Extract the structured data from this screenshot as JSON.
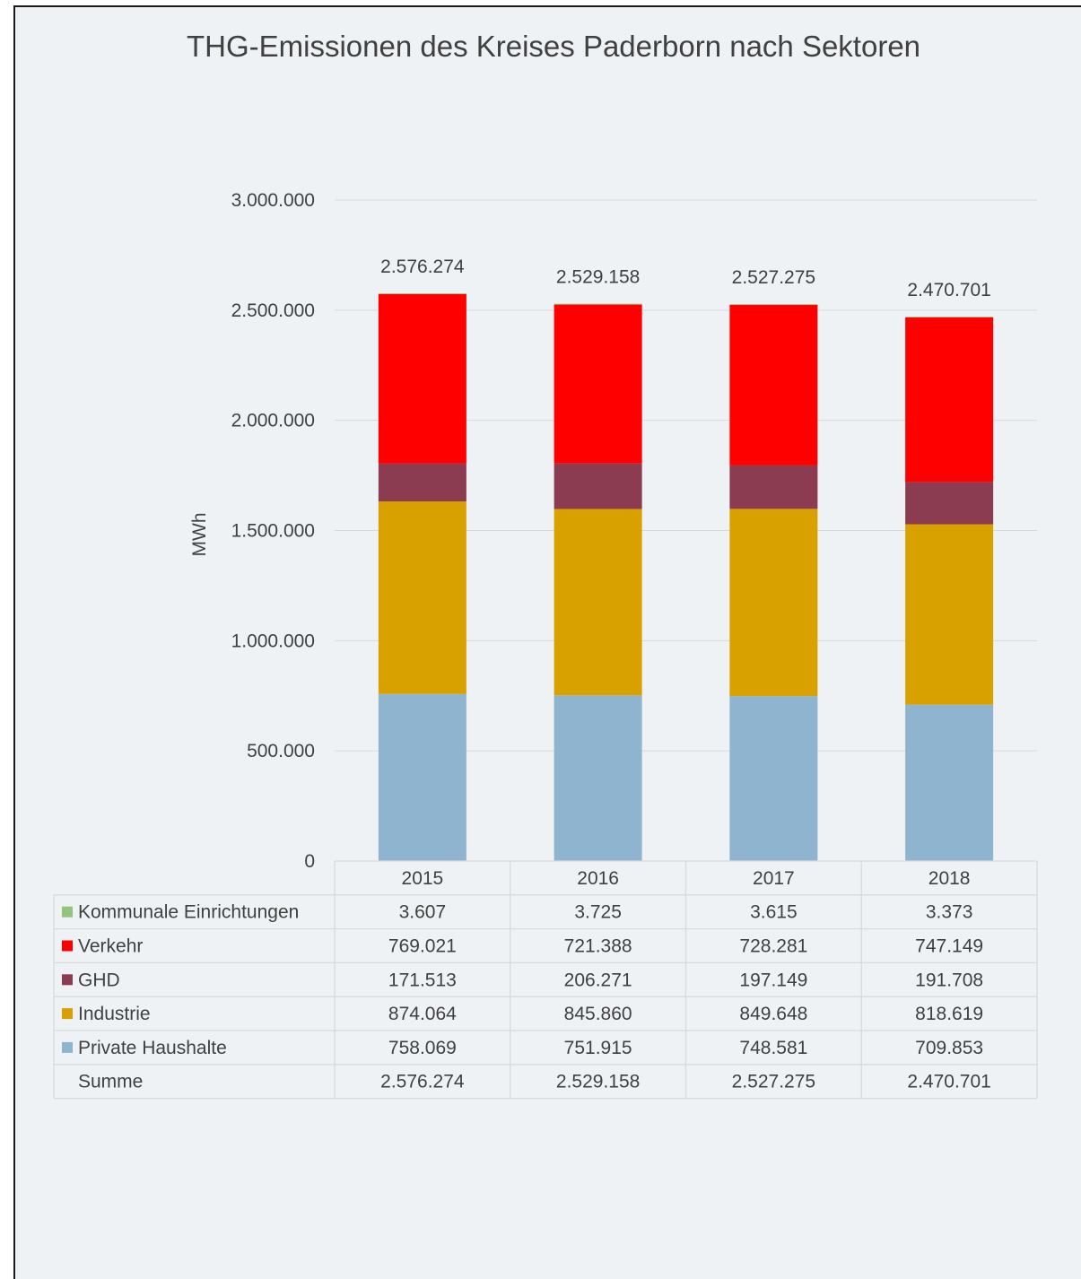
{
  "chart_data": {
    "type": "bar",
    "stacked": true,
    "title": "THG-Emissionen des Kreises Paderborn nach Sektoren",
    "ylabel": "MWh",
    "xlabel": "",
    "ylim": [
      0,
      3000000
    ],
    "yticks": [
      0,
      500000,
      1000000,
      1500000,
      2000000,
      2500000,
      3000000
    ],
    "ytick_labels": [
      "0",
      "500.000",
      "1.000.000",
      "1.500.000",
      "2.000.000",
      "2.500.000",
      "3.000.000"
    ],
    "categories": [
      "2015",
      "2016",
      "2017",
      "2018"
    ],
    "series": [
      {
        "name": "Private Haushalte",
        "color": "#8fb4d0",
        "values": [
          758069,
          751915,
          748581,
          709853
        ],
        "labels": [
          "758.069",
          "751.915",
          "748.581",
          "709.853"
        ]
      },
      {
        "name": "Industrie",
        "color": "#d9a100",
        "values": [
          874064,
          845860,
          849648,
          818619
        ],
        "labels": [
          "874.064",
          "845.860",
          "849.648",
          "818.619"
        ]
      },
      {
        "name": "GHD",
        "color": "#8b3c50",
        "values": [
          171513,
          206271,
          197149,
          191708
        ],
        "labels": [
          "171.513",
          "206.271",
          "197.149",
          "191.708"
        ]
      },
      {
        "name": "Verkehr",
        "color": "#ff0000",
        "values": [
          769021,
          721388,
          728281,
          747149
        ],
        "labels": [
          "769.021",
          "721.388",
          "728.281",
          "747.149"
        ]
      },
      {
        "name": "Kommunale Einrichtungen",
        "color": "#93c47d",
        "values": [
          3607,
          3725,
          3615,
          3373
        ],
        "labels": [
          "3.607",
          "3.725",
          "3.615",
          "3.373"
        ]
      }
    ],
    "table_row_order": [
      "Kommunale Einrichtungen",
      "Verkehr",
      "GHD",
      "Industrie",
      "Private Haushalte"
    ],
    "totals": {
      "name": "Summe",
      "values": [
        2576274,
        2529158,
        2527275,
        2470701
      ],
      "labels": [
        "2.576.274",
        "2.529.158",
        "2.527.275",
        "2.470.701"
      ]
    },
    "grid": true,
    "legend": "data table"
  }
}
